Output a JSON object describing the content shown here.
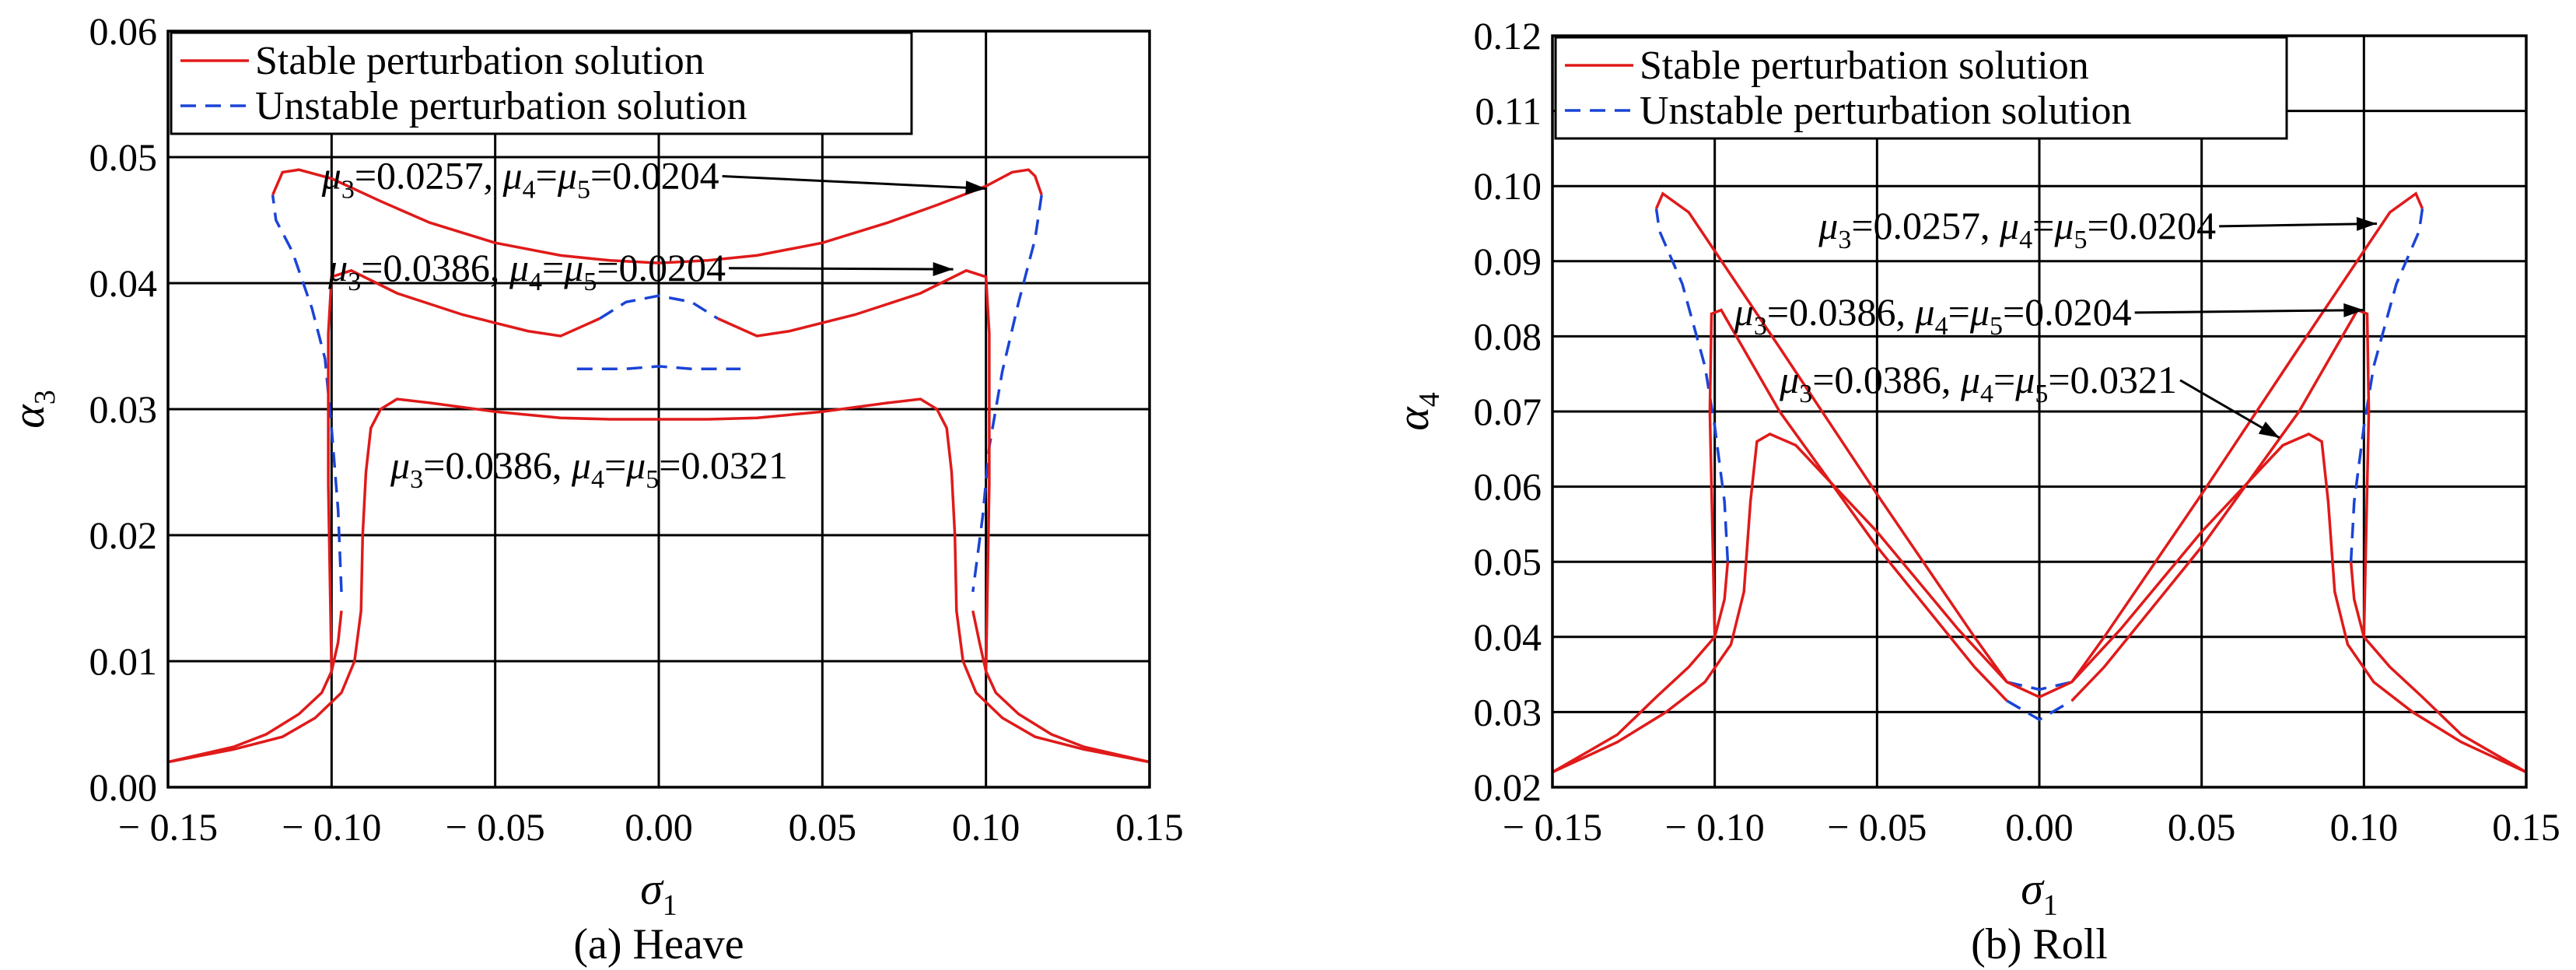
{
  "chart_data": [
    {
      "id": "heave",
      "type": "line",
      "caption": "(a) Heave",
      "xlabel": "σ",
      "xlabel_sub": "1",
      "ylabel": "α",
      "ylabel_sub": "3",
      "xlim": [
        -0.15,
        0.15
      ],
      "ylim": [
        0.0,
        0.06
      ],
      "xticks": [
        -0.15,
        -0.1,
        -0.05,
        0.0,
        0.05,
        0.1,
        0.15
      ],
      "xtick_labels": [
        "− 0.15",
        "− 0.10",
        "− 0.05",
        "0.00",
        "0.05",
        "0.10",
        "0.15"
      ],
      "yticks": [
        0.0,
        0.01,
        0.02,
        0.03,
        0.04,
        0.05,
        0.06
      ],
      "ytick_labels": [
        "0.00",
        "0.01",
        "0.02",
        "0.03",
        "0.04",
        "0.05",
        "0.06"
      ],
      "grid": true,
      "legend_position": "top-left",
      "legend": [
        {
          "label": "Stable perturbation solution",
          "style": "stable",
          "color": "#e01a1a"
        },
        {
          "label": "Unstable perturbation solution",
          "style": "unstable",
          "color": "#1a44d6"
        }
      ],
      "annotations": [
        {
          "parts": [
            [
              "μ",
              "3",
              "=0.0257, "
            ],
            [
              "μ",
              "4",
              "="
            ],
            [
              "μ",
              "5",
              "=0.0204"
            ]
          ],
          "x": -0.103,
          "y": 0.0475,
          "arrow_to": [
            0.1,
            0.0475
          ]
        },
        {
          "parts": [
            [
              "μ",
              "3",
              "=0.0386, "
            ],
            [
              "μ",
              "4",
              "="
            ],
            [
              "μ",
              "5",
              "=0.0204"
            ]
          ],
          "x": -0.101,
          "y": 0.0402,
          "arrow_to": [
            0.09,
            0.0411
          ]
        },
        {
          "parts": [
            [
              "μ",
              "3",
              "=0.0386, "
            ],
            [
              "μ",
              "4",
              "="
            ],
            [
              "μ",
              "5",
              "=0.0321"
            ]
          ],
          "x": -0.082,
          "y": 0.0245
        }
      ],
      "series": [
        {
          "style": "stable",
          "x": [
            -0.15,
            -0.13,
            -0.12,
            -0.11,
            -0.103,
            -0.1,
            -0.098,
            -0.097
          ],
          "y": [
            0.002,
            0.0032,
            0.0042,
            0.0058,
            0.0075,
            0.0092,
            0.0115,
            0.014
          ]
        },
        {
          "style": "unstable",
          "x": [
            -0.097,
            -0.098,
            -0.1,
            -0.102,
            -0.106,
            -0.112,
            -0.117,
            -0.118
          ],
          "y": [
            0.0155,
            0.022,
            0.0285,
            0.034,
            0.038,
            0.0425,
            0.045,
            0.047
          ]
        },
        {
          "style": "stable",
          "x": [
            -0.118,
            -0.115,
            -0.11,
            -0.1,
            -0.085,
            -0.07,
            -0.05,
            -0.03,
            -0.015,
            0.0,
            0.015,
            0.03,
            0.05,
            0.07,
            0.085,
            0.1,
            0.108,
            0.113,
            0.115,
            0.117
          ],
          "y": [
            0.047,
            0.0488,
            0.049,
            0.0483,
            0.0465,
            0.0448,
            0.0432,
            0.0422,
            0.0418,
            0.0416,
            0.0418,
            0.0422,
            0.0432,
            0.0448,
            0.0462,
            0.0477,
            0.0488,
            0.049,
            0.0485,
            0.047
          ]
        },
        {
          "style": "unstable",
          "x": [
            0.117,
            0.115,
            0.11,
            0.105,
            0.101,
            0.099,
            0.097,
            0.096
          ],
          "y": [
            0.047,
            0.0435,
            0.0385,
            0.033,
            0.027,
            0.0215,
            0.0175,
            0.0155
          ]
        },
        {
          "style": "stable",
          "x": [
            0.096,
            0.098,
            0.1,
            0.103,
            0.11,
            0.12,
            0.13,
            0.15
          ],
          "y": [
            0.014,
            0.0115,
            0.0092,
            0.0075,
            0.0058,
            0.0042,
            0.0032,
            0.002
          ]
        },
        {
          "style": "stable",
          "x": [
            -0.1,
            -0.101,
            -0.101,
            -0.1,
            -0.094,
            -0.08,
            -0.06,
            -0.04,
            -0.03,
            -0.018
          ],
          "y": [
            0.0092,
            0.024,
            0.036,
            0.0405,
            0.041,
            0.0392,
            0.0375,
            0.0362,
            0.0358,
            0.0372
          ]
        },
        {
          "style": "unstable",
          "x": [
            -0.018,
            -0.01,
            0.0,
            0.01,
            0.018
          ],
          "y": [
            0.0372,
            0.0385,
            0.039,
            0.0385,
            0.0372
          ]
        },
        {
          "style": "stable",
          "x": [
            0.018,
            0.03,
            0.04,
            0.06,
            0.08,
            0.094,
            0.1,
            0.101,
            0.101,
            0.1
          ],
          "y": [
            0.0372,
            0.0358,
            0.0362,
            0.0375,
            0.0392,
            0.041,
            0.0405,
            0.036,
            0.024,
            0.0092
          ]
        },
        {
          "style": "stable",
          "x": [
            -0.15,
            -0.13,
            -0.115,
            -0.105,
            -0.097,
            -0.093,
            -0.091,
            -0.0905,
            -0.0895,
            -0.088,
            -0.085,
            -0.08,
            -0.07,
            -0.05,
            -0.03,
            -0.015,
            0.0,
            0.015,
            0.03,
            0.05,
            0.07,
            0.08,
            0.085,
            0.088,
            0.0895,
            0.0905,
            0.091,
            0.093,
            0.097,
            0.105,
            0.115,
            0.13,
            0.15
          ],
          "y": [
            0.002,
            0.003,
            0.004,
            0.0055,
            0.0075,
            0.01,
            0.014,
            0.02,
            0.025,
            0.0285,
            0.03,
            0.0308,
            0.0305,
            0.0298,
            0.0293,
            0.0292,
            0.0292,
            0.0292,
            0.0293,
            0.0298,
            0.0305,
            0.0308,
            0.03,
            0.0285,
            0.025,
            0.02,
            0.014,
            0.01,
            0.0075,
            0.0055,
            0.004,
            0.003,
            0.002
          ]
        },
        {
          "style": "unstable",
          "x": [
            -0.025,
            -0.01,
            0.0,
            0.01,
            0.025
          ],
          "y": [
            0.0332,
            0.0332,
            0.0334,
            0.0332,
            0.0332
          ]
        }
      ]
    },
    {
      "id": "roll",
      "type": "line",
      "caption": "(b) Roll",
      "xlabel": "σ",
      "xlabel_sub": "1",
      "ylabel": "α",
      "ylabel_sub": "4",
      "xlim": [
        -0.15,
        0.15
      ],
      "ylim": [
        0.02,
        0.12
      ],
      "xticks": [
        -0.15,
        -0.1,
        -0.05,
        0.0,
        0.05,
        0.1,
        0.15
      ],
      "xtick_labels": [
        "− 0.15",
        "− 0.10",
        "− 0.05",
        "0.00",
        "0.05",
        "0.10",
        "0.15"
      ],
      "yticks": [
        0.02,
        0.03,
        0.04,
        0.05,
        0.06,
        0.07,
        0.08,
        0.09,
        0.1,
        0.11,
        0.12
      ],
      "ytick_labels": [
        "0.02",
        "0.03",
        "0.04",
        "0.05",
        "0.06",
        "0.07",
        "0.08",
        "0.09",
        "0.10",
        "0.11",
        "0.12"
      ],
      "grid": true,
      "legend_position": "top-left",
      "legend": [
        {
          "label": "Stable perturbation solution",
          "style": "stable",
          "color": "#e01a1a"
        },
        {
          "label": "Unstable perturbation solution",
          "style": "unstable",
          "color": "#1a44d6"
        }
      ],
      "annotations": [
        {
          "parts": [
            [
              "μ",
              "3",
              "=0.0257, "
            ],
            [
              "μ",
              "4",
              "="
            ],
            [
              "μ",
              "5",
              "=0.0204"
            ]
          ],
          "x": -0.068,
          "y": 0.093,
          "arrow_to": [
            0.104,
            0.095
          ]
        },
        {
          "parts": [
            [
              "μ",
              "3",
              "=0.0386, "
            ],
            [
              "μ",
              "4",
              "="
            ],
            [
              "μ",
              "5",
              "=0.0204"
            ]
          ],
          "x": -0.094,
          "y": 0.0815,
          "arrow_to": [
            0.1,
            0.0835
          ]
        },
        {
          "parts": [
            [
              "μ",
              "3",
              "=0.0386, "
            ],
            [
              "μ",
              "4",
              "="
            ],
            [
              "μ",
              "5",
              "=0.0321"
            ]
          ],
          "x": -0.08,
          "y": 0.0725,
          "arrow_to": [
            0.074,
            0.0665
          ]
        }
      ],
      "series": [
        {
          "style": "stable",
          "x": [
            -0.15,
            -0.13,
            -0.118,
            -0.108,
            -0.1,
            -0.097,
            -0.096
          ],
          "y": [
            0.022,
            0.027,
            0.032,
            0.036,
            0.04,
            0.045,
            0.05
          ]
        },
        {
          "style": "unstable",
          "x": [
            -0.096,
            -0.097,
            -0.1,
            -0.103,
            -0.11,
            -0.117,
            -0.118
          ],
          "y": [
            0.05,
            0.058,
            0.068,
            0.076,
            0.087,
            0.094,
            0.097
          ]
        },
        {
          "style": "stable",
          "x": [
            -0.118,
            -0.116,
            -0.108,
            -0.08,
            -0.05,
            -0.02,
            -0.01
          ],
          "y": [
            0.097,
            0.099,
            0.0965,
            0.0785,
            0.059,
            0.04,
            0.034
          ]
        },
        {
          "style": "unstable",
          "x": [
            -0.01,
            0.0,
            0.01
          ],
          "y": [
            0.034,
            0.033,
            0.034
          ]
        },
        {
          "style": "stable",
          "x": [
            0.01,
            0.02,
            0.05,
            0.08,
            0.108,
            0.116,
            0.118
          ],
          "y": [
            0.034,
            0.04,
            0.059,
            0.0785,
            0.0965,
            0.099,
            0.097
          ]
        },
        {
          "style": "unstable",
          "x": [
            0.118,
            0.117,
            0.11,
            0.103,
            0.1,
            0.097,
            0.096
          ],
          "y": [
            0.097,
            0.094,
            0.087,
            0.076,
            0.068,
            0.058,
            0.05
          ]
        },
        {
          "style": "stable",
          "x": [
            0.096,
            0.097,
            0.1,
            0.108,
            0.118,
            0.13,
            0.15
          ],
          "y": [
            0.05,
            0.045,
            0.04,
            0.036,
            0.032,
            0.027,
            0.022
          ]
        },
        {
          "style": "stable",
          "x": [
            -0.1,
            -0.1015,
            -0.101,
            -0.098,
            -0.08,
            -0.05,
            -0.02,
            -0.01
          ],
          "y": [
            0.04,
            0.07,
            0.083,
            0.0835,
            0.07,
            0.052,
            0.036,
            0.0315
          ]
        },
        {
          "style": "unstable",
          "x": [
            -0.01,
            0.0,
            0.01
          ],
          "y": [
            0.0315,
            0.029,
            0.0315
          ]
        },
        {
          "style": "stable",
          "x": [
            0.01,
            0.02,
            0.05,
            0.08,
            0.098,
            0.101,
            0.1015,
            0.1
          ],
          "y": [
            0.0315,
            0.036,
            0.052,
            0.07,
            0.0835,
            0.083,
            0.07,
            0.04
          ]
        },
        {
          "style": "stable",
          "x": [
            -0.15,
            -0.13,
            -0.115,
            -0.103,
            -0.095,
            -0.091,
            -0.089,
            -0.087,
            -0.083,
            -0.075,
            -0.05,
            -0.025,
            -0.01,
            0.0,
            0.01,
            0.025,
            0.05,
            0.075,
            0.083,
            0.087,
            0.089,
            0.091,
            0.095,
            0.103,
            0.115,
            0.13,
            0.15
          ],
          "y": [
            0.022,
            0.026,
            0.03,
            0.034,
            0.039,
            0.046,
            0.058,
            0.066,
            0.067,
            0.0655,
            0.054,
            0.041,
            0.034,
            0.032,
            0.034,
            0.041,
            0.054,
            0.0655,
            0.067,
            0.066,
            0.058,
            0.046,
            0.039,
            0.034,
            0.03,
            0.026,
            0.022
          ]
        }
      ]
    }
  ]
}
